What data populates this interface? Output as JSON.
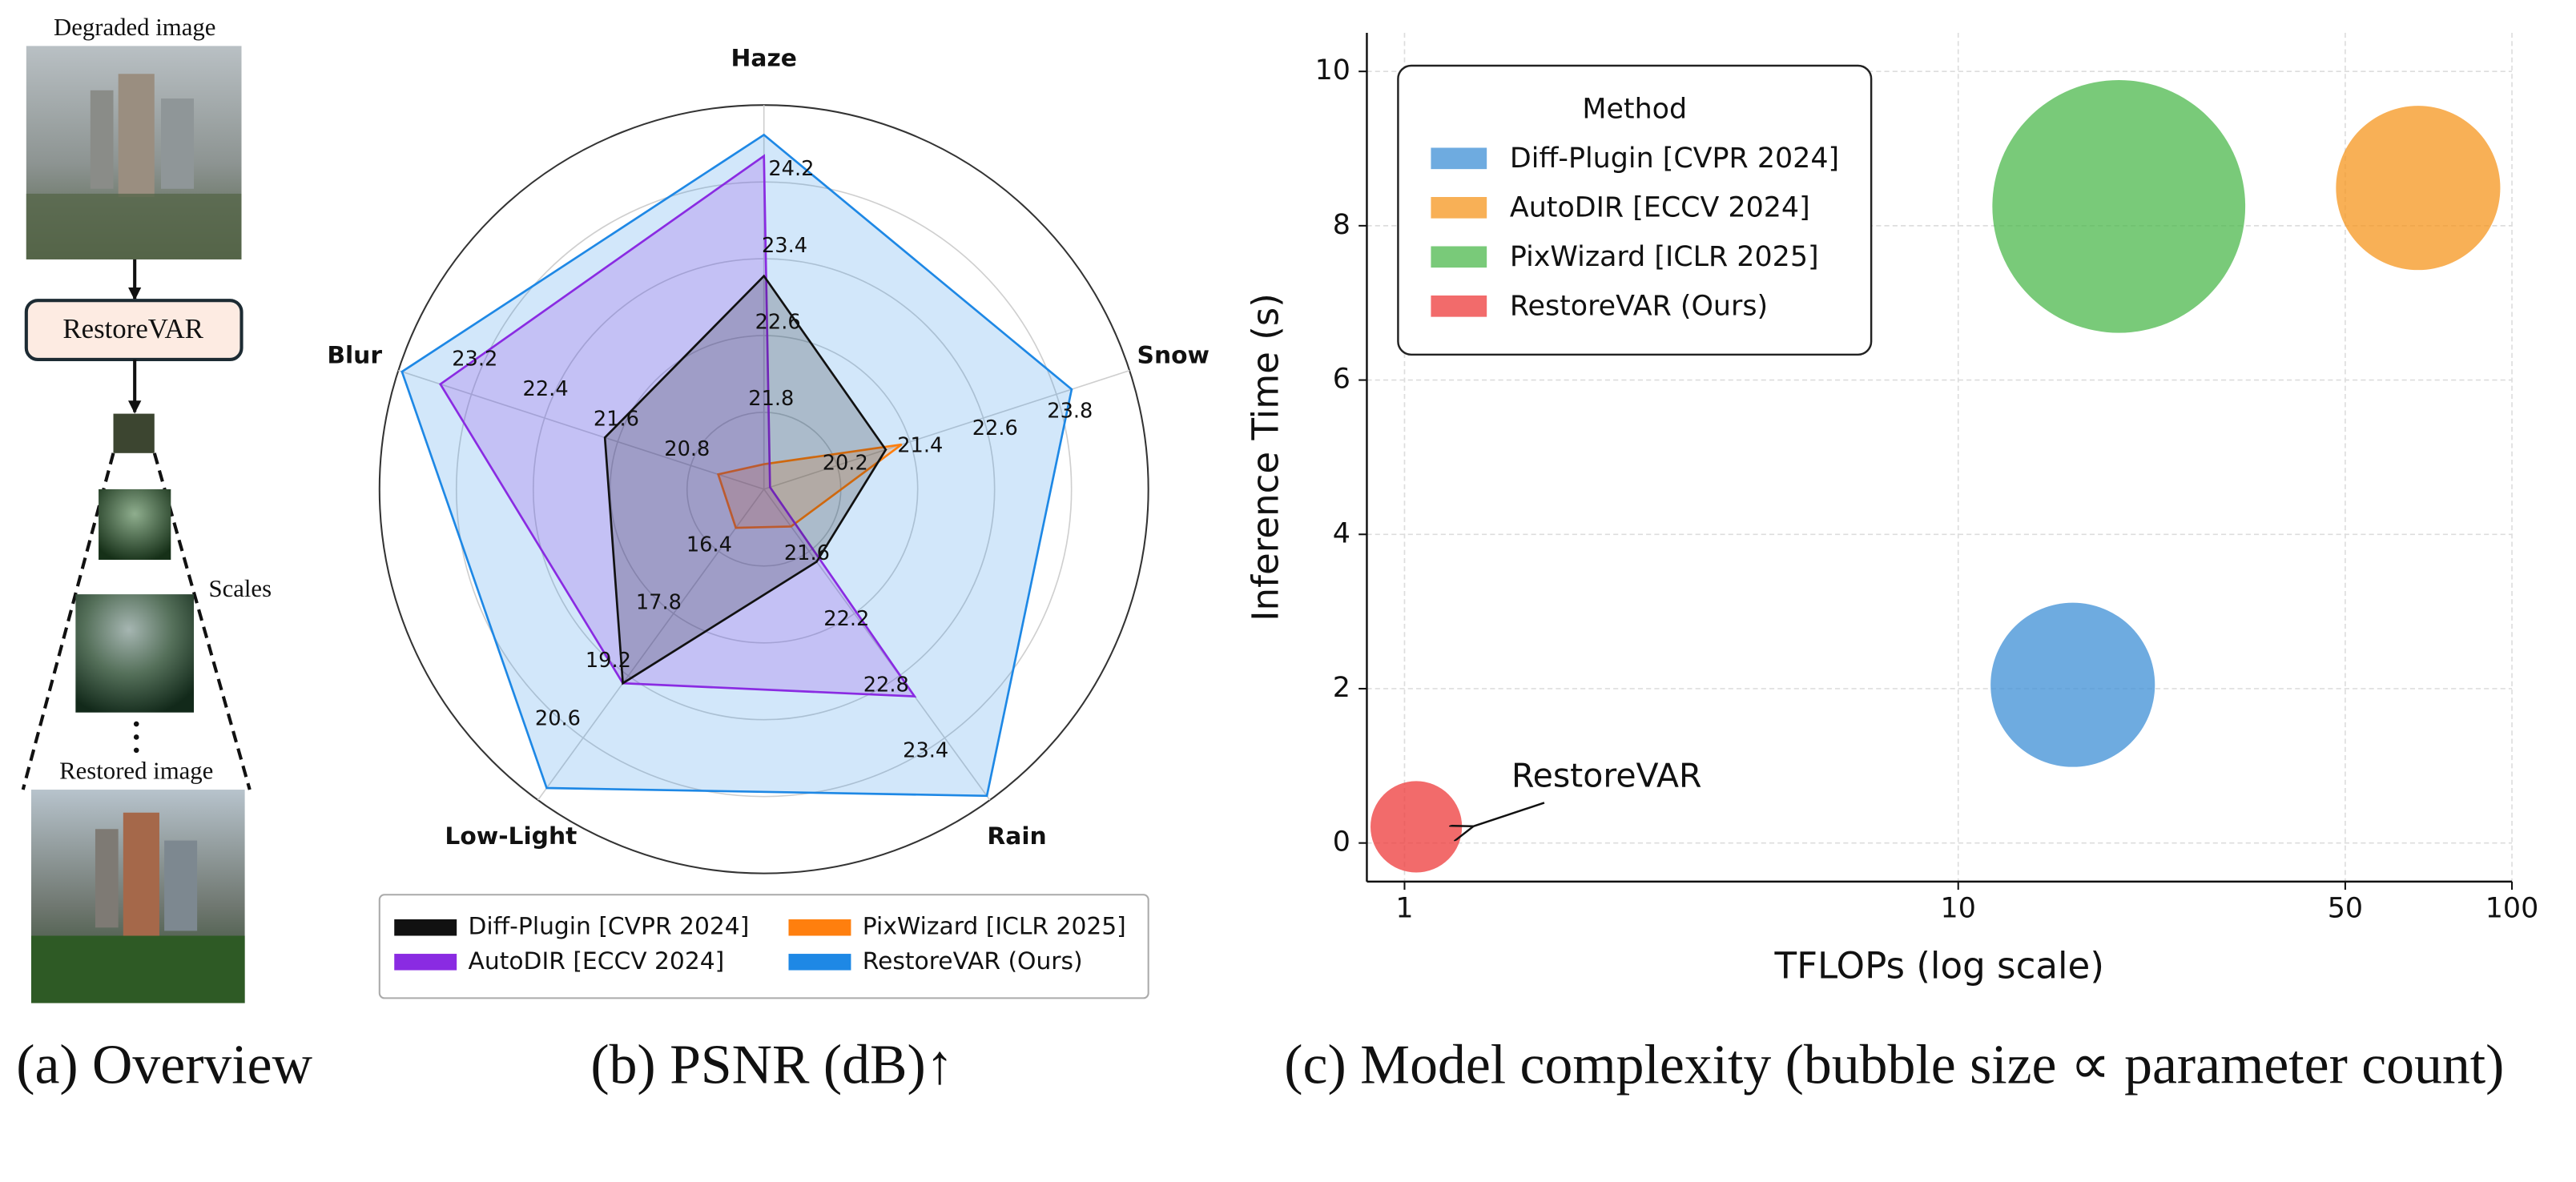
{
  "overview": {
    "input_label": "Degraded image",
    "model": "RestoreVAR",
    "scales_label": "Scales",
    "output_label": "Restored image",
    "caption": "(a) Overview"
  },
  "chart_data": [
    {
      "type": "radar",
      "caption": "(b) PSNR (dB)↑",
      "fill_alpha": 0.2,
      "legend_loc": "lower center",
      "legend_columns": 2,
      "axes": [
        {
          "name": "Haze",
          "lim": [
            21.0,
            25.0
          ],
          "ticks": [
            21.8,
            22.6,
            23.4,
            24.2
          ]
        },
        {
          "name": "Snow",
          "lim": [
            19.0,
            25.0
          ],
          "ticks": [
            20.2,
            21.4,
            22.6,
            23.8
          ]
        },
        {
          "name": "Rain",
          "lim": [
            21.0,
            24.0
          ],
          "ticks": [
            21.6,
            22.2,
            22.8,
            23.4
          ]
        },
        {
          "name": "Low-Light",
          "lim": [
            15.0,
            22.0
          ],
          "ticks": [
            16.4,
            17.8,
            19.2,
            20.6
          ]
        },
        {
          "name": "Blur",
          "lim": [
            20.0,
            24.0
          ],
          "ticks": [
            20.8,
            21.6,
            22.4,
            23.2
          ]
        }
      ],
      "series": [
        {
          "name": "Diff-Plugin [CVPR 2024]",
          "color": "#111111",
          "values": [
            23.22,
            21.0,
            21.7,
            19.37,
            21.74
          ]
        },
        {
          "name": "AutoDIR [ECCV 2024]",
          "color": "#8a2be2",
          "values": [
            24.47,
            19.1,
            23.0,
            19.37,
            23.54
          ]
        },
        {
          "name": "PixWizard [ICLR 2025]",
          "color": "#ff7f0e",
          "values": [
            21.26,
            21.26,
            21.36,
            15.87,
            20.5
          ]
        },
        {
          "name": "RestoreVAR (Ours)",
          "color": "#1e88e5",
          "values": [
            24.69,
            24.05,
            23.96,
            21.73,
            23.96
          ]
        }
      ]
    },
    {
      "type": "bubble",
      "caption": "(c) Model complexity (bubble size ∝ parameter count)",
      "x_label": "TFLOPs (log scale)",
      "y_label": "Inference Time (s)",
      "x_log": true,
      "grid": true,
      "xlim": [
        0.855,
        100
      ],
      "ylim": [
        -0.5,
        10.5
      ],
      "xticks": [
        1,
        10,
        50,
        100
      ],
      "yticks": [
        0,
        2,
        4,
        6,
        8,
        10
      ],
      "legend_title": "Method",
      "legend_loc": "upper left",
      "annotation": "RestoreVAR",
      "series": [
        {
          "name": "Diff-Plugin [CVPR 2024]",
          "color": "#3d8fd6",
          "x": [
            16.1
          ],
          "values": [
            2.05
          ],
          "sizes": [
            1.0
          ]
        },
        {
          "name": "AutoDIR [ECCV 2024]",
          "color": "#f5961e",
          "x": [
            67.7
          ],
          "values": [
            8.49
          ],
          "sizes": [
            1.0
          ]
        },
        {
          "name": "PixWizard [ICLR 2025]",
          "color": "#4cb84c",
          "x": [
            19.5
          ],
          "values": [
            8.25
          ],
          "sizes": [
            2.37
          ]
        },
        {
          "name": "RestoreVAR (Ours)",
          "color": "#ee3a3a",
          "x": [
            1.05
          ],
          "values": [
            0.21
          ],
          "sizes": [
            0.31
          ]
        }
      ]
    }
  ]
}
